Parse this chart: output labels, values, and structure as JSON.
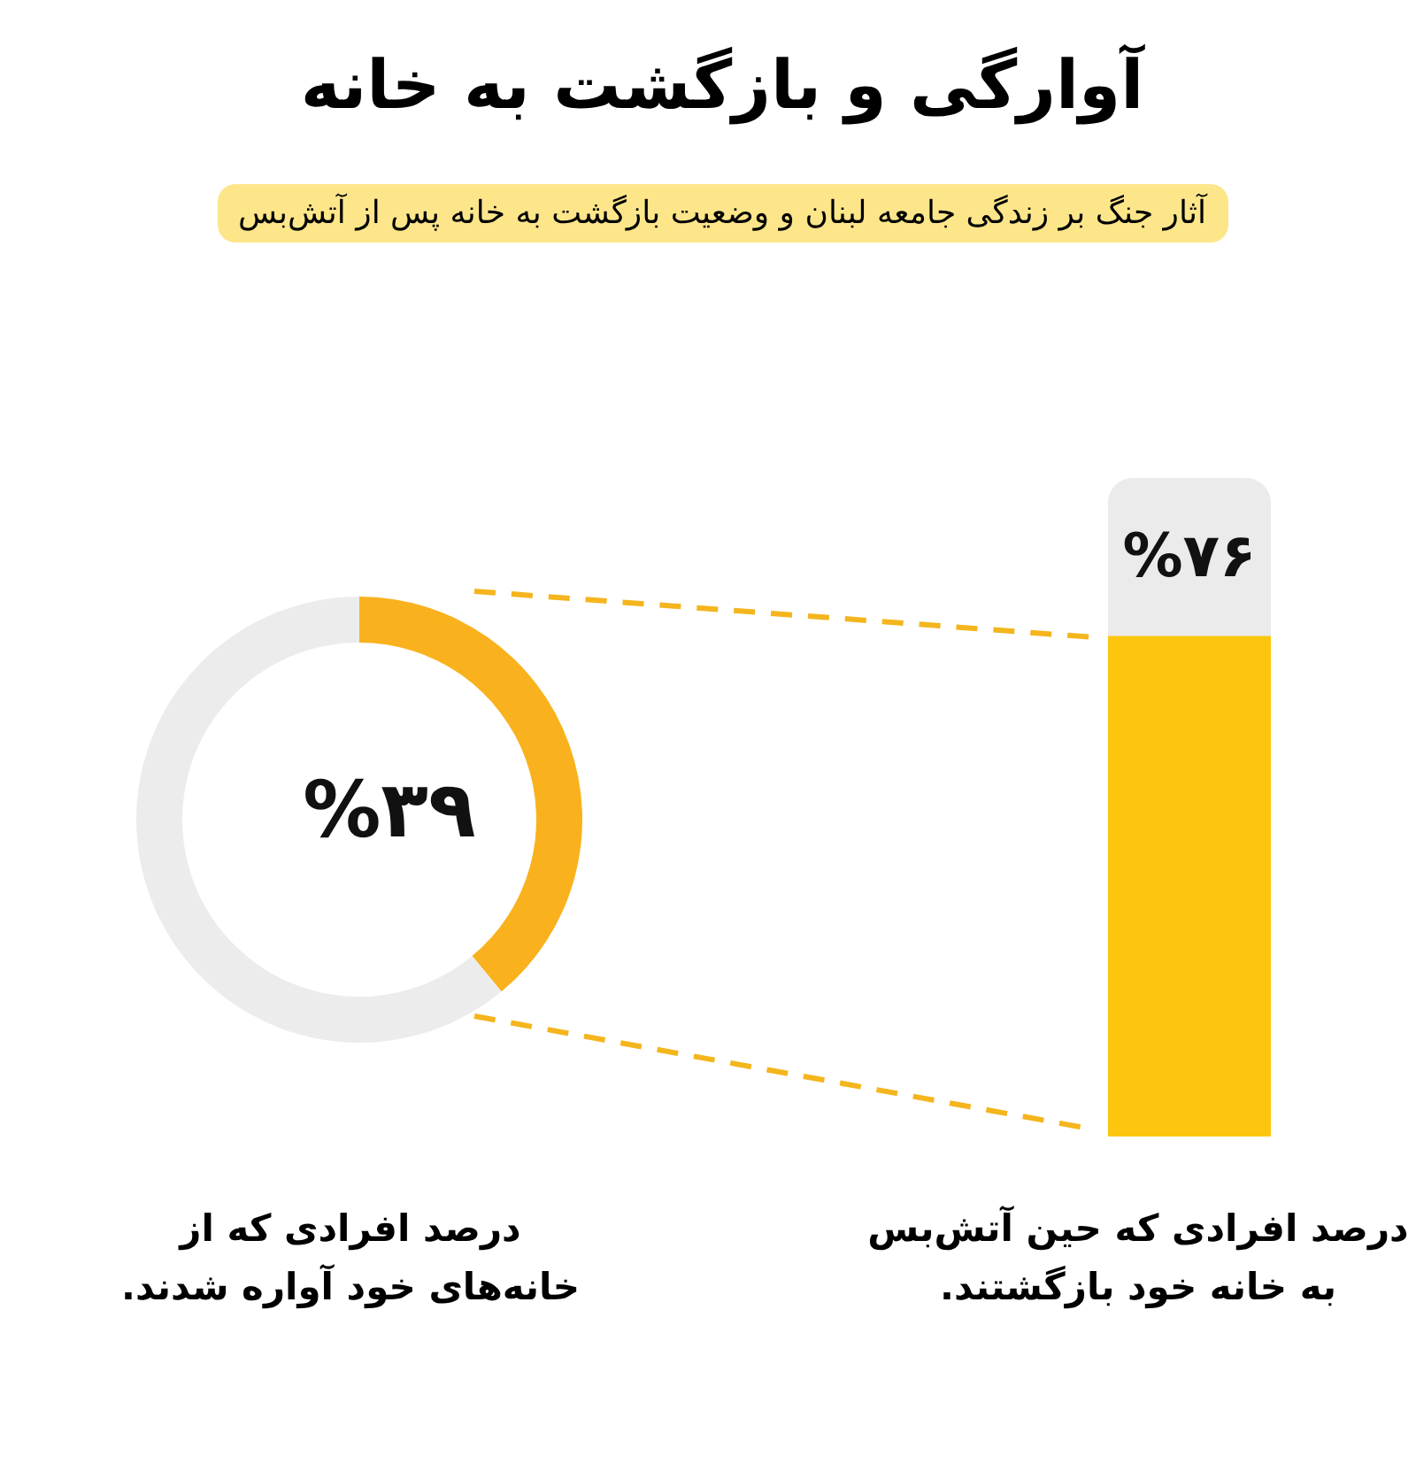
{
  "chart_data": [
    {
      "type": "donut",
      "title": "آوارگی و بازگشت به خانه",
      "subtitle": "آثار جنگ بر زندگی جامعه لبنان و وضعیت بازگشت به خانه پس از آتش‌بس",
      "categories": [
        null,
        null
      ],
      "values": [
        39,
        61
      ],
      "colors": [
        "#f9b21d",
        "#ececec"
      ],
      "value_labels": [
        "%۳۹",
        null
      ],
      "annotations": [
        "درصد افرادی که از خانه‌های خود آواره شدند."
      ]
    },
    {
      "type": "bar",
      "categories": [
        null
      ],
      "values": [
        76
      ],
      "color": "#fcc60f",
      "ylim": [
        0,
        100
      ],
      "value_labels": [
        "%۷۶"
      ],
      "tick_labels": false,
      "annotations": [
        "درصد افرادی که حین آتش‌بس به خانه خود بازگشتند."
      ]
    }
  ]
}
